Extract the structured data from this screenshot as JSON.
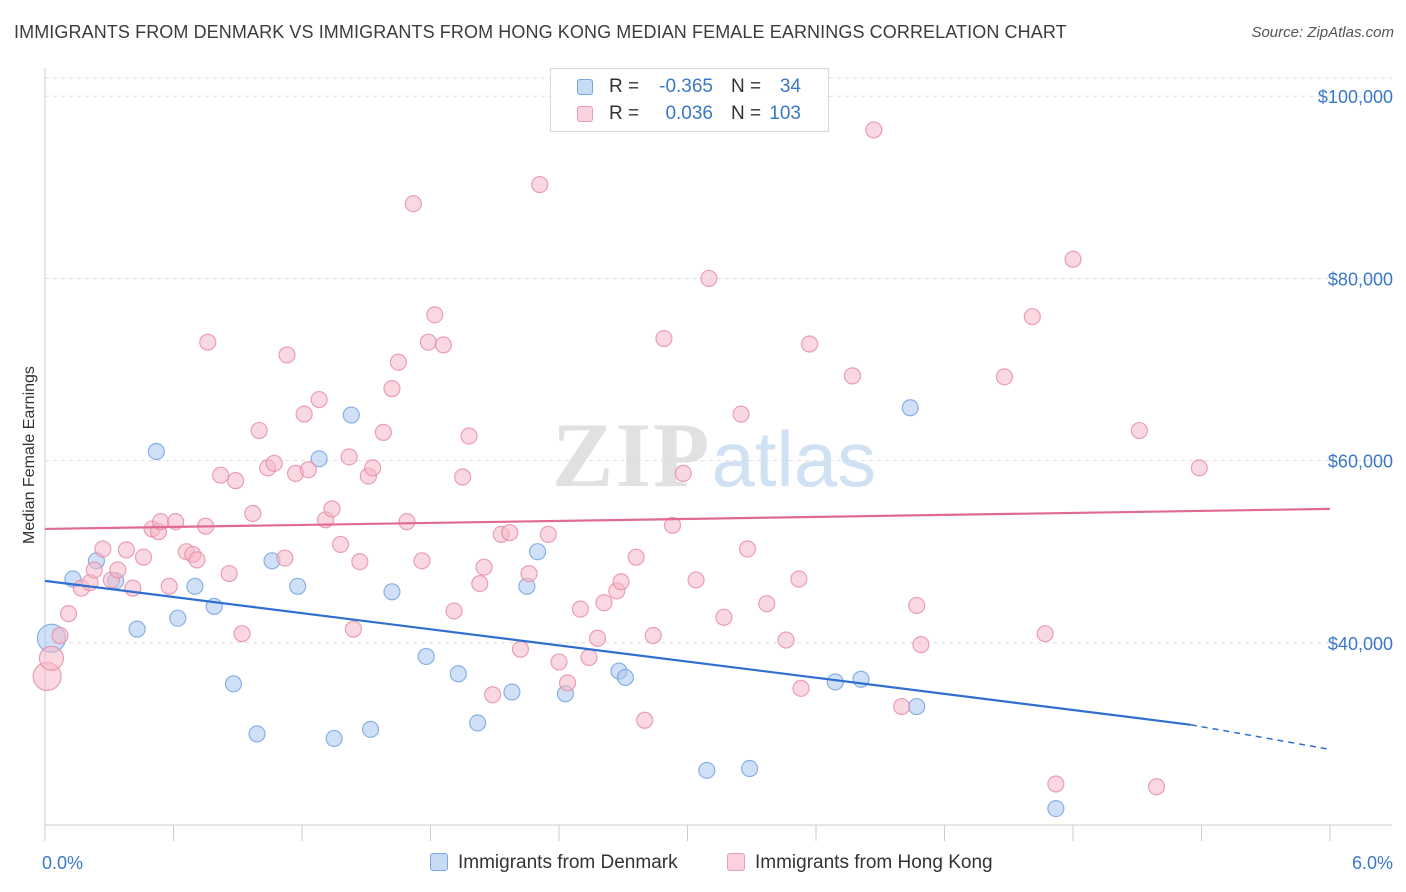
{
  "title": "IMMIGRANTS FROM DENMARK VS IMMIGRANTS FROM HONG KONG MEDIAN FEMALE EARNINGS CORRELATION CHART",
  "source": "Source: ZipAtlas.com",
  "watermark": {
    "zip": "ZIP",
    "atlas": "atlas"
  },
  "legend": {
    "denmark": {
      "r_label": "R =",
      "r_value": "-0.365",
      "n_label": "N =",
      "n_value": "34",
      "color": "#a9c7f0"
    },
    "hongkong": {
      "r_label": "R =",
      "r_value": "0.036",
      "n_label": "N =",
      "n_value": "103",
      "color": "#f5b8c9"
    }
  },
  "bottom_legend": {
    "denmark": "Immigrants from Denmark",
    "hongkong": "Immigrants from Hong Kong"
  },
  "chart_data": {
    "type": "scatter",
    "title": "IMMIGRANTS FROM DENMARK VS IMMIGRANTS FROM HONG KONG MEDIAN FEMALE EARNINGS CORRELATION CHART",
    "xlabel": "",
    "ylabel": "Median Female Earnings",
    "xlim": [
      0.0,
      6.0
    ],
    "ylim": [
      20000,
      102000
    ],
    "x_tick_labels": [
      "0.0%",
      "6.0%"
    ],
    "y_ticks": [
      40000,
      60000,
      80000,
      100000
    ],
    "y_tick_labels": [
      "$40,000",
      "$60,000",
      "$80,000",
      "$100,000"
    ],
    "grid": "horizontal dashed",
    "legend_position": "top-center",
    "series": [
      {
        "name": "Immigrants from Denmark",
        "color": "#6fa0e0",
        "fill": "#a9c7f0",
        "trend": {
          "x": [
            0.0,
            5.35
          ],
          "y": [
            46800,
            31000
          ],
          "dashed_to": [
            6.0,
            28300
          ]
        },
        "points": [
          [
            0.03,
            40500
          ],
          [
            0.13,
            47000
          ],
          [
            0.24,
            49000
          ],
          [
            0.33,
            46800
          ],
          [
            0.43,
            41500
          ],
          [
            0.52,
            61000
          ],
          [
            0.62,
            42700
          ],
          [
            0.7,
            46200
          ],
          [
            0.79,
            44000
          ],
          [
            0.88,
            35500
          ],
          [
            0.99,
            30000
          ],
          [
            1.06,
            49000
          ],
          [
            1.18,
            46200
          ],
          [
            1.28,
            60200
          ],
          [
            1.35,
            29500
          ],
          [
            1.43,
            65000
          ],
          [
            1.52,
            30500
          ],
          [
            1.62,
            45600
          ],
          [
            1.78,
            38500
          ],
          [
            1.93,
            36600
          ],
          [
            2.02,
            31200
          ],
          [
            2.18,
            34600
          ],
          [
            2.25,
            46200
          ],
          [
            2.3,
            50000
          ],
          [
            2.43,
            34400
          ],
          [
            2.68,
            36900
          ],
          [
            2.71,
            36200
          ],
          [
            3.09,
            26000
          ],
          [
            3.29,
            26200
          ],
          [
            3.69,
            35700
          ],
          [
            3.81,
            36000
          ],
          [
            4.04,
            65800
          ],
          [
            4.07,
            33000
          ],
          [
            4.72,
            21800
          ]
        ]
      },
      {
        "name": "Immigrants from Hong Kong",
        "color": "#e68aa5",
        "fill": "#f5b8c9",
        "trend": {
          "x": [
            0.0,
            6.0
          ],
          "y": [
            52500,
            54700
          ]
        },
        "points": [
          [
            0.01,
            36300
          ],
          [
            0.03,
            38300
          ],
          [
            0.07,
            40800
          ],
          [
            0.11,
            43200
          ],
          [
            0.17,
            46000
          ],
          [
            0.21,
            46600
          ],
          [
            0.23,
            48000
          ],
          [
            0.27,
            50300
          ],
          [
            0.31,
            46900
          ],
          [
            0.34,
            48000
          ],
          [
            0.38,
            50200
          ],
          [
            0.41,
            46000
          ],
          [
            0.46,
            49400
          ],
          [
            0.5,
            52500
          ],
          [
            0.53,
            52200
          ],
          [
            0.54,
            53300
          ],
          [
            0.58,
            46200
          ],
          [
            0.61,
            53300
          ],
          [
            0.66,
            50000
          ],
          [
            0.69,
            49700
          ],
          [
            0.71,
            49100
          ],
          [
            0.75,
            52800
          ],
          [
            0.76,
            73000
          ],
          [
            0.82,
            58400
          ],
          [
            0.86,
            47600
          ],
          [
            0.89,
            57800
          ],
          [
            0.92,
            41000
          ],
          [
            0.97,
            54200
          ],
          [
            1.0,
            63300
          ],
          [
            1.04,
            59200
          ],
          [
            1.07,
            59700
          ],
          [
            1.12,
            49300
          ],
          [
            1.13,
            71600
          ],
          [
            1.17,
            58600
          ],
          [
            1.21,
            65100
          ],
          [
            1.23,
            59000
          ],
          [
            1.28,
            66700
          ],
          [
            1.31,
            53500
          ],
          [
            1.34,
            54700
          ],
          [
            1.38,
            50800
          ],
          [
            1.42,
            60400
          ],
          [
            1.44,
            41500
          ],
          [
            1.47,
            48900
          ],
          [
            1.51,
            58300
          ],
          [
            1.53,
            59200
          ],
          [
            1.58,
            63100
          ],
          [
            1.62,
            67900
          ],
          [
            1.65,
            70800
          ],
          [
            1.69,
            53300
          ],
          [
            1.72,
            88200
          ],
          [
            1.76,
            49000
          ],
          [
            1.79,
            73000
          ],
          [
            1.82,
            76000
          ],
          [
            1.86,
            72700
          ],
          [
            1.91,
            43500
          ],
          [
            1.95,
            58200
          ],
          [
            1.98,
            62700
          ],
          [
            2.03,
            46500
          ],
          [
            2.05,
            48300
          ],
          [
            2.09,
            34300
          ],
          [
            2.13,
            51900
          ],
          [
            2.17,
            52100
          ],
          [
            2.22,
            39300
          ],
          [
            2.26,
            47600
          ],
          [
            2.31,
            90300
          ],
          [
            2.35,
            51900
          ],
          [
            2.4,
            37900
          ],
          [
            2.44,
            35600
          ],
          [
            2.5,
            43700
          ],
          [
            2.54,
            38400
          ],
          [
            2.58,
            40500
          ],
          [
            2.61,
            44400
          ],
          [
            2.67,
            45700
          ],
          [
            2.69,
            46700
          ],
          [
            2.76,
            49400
          ],
          [
            2.8,
            31500
          ],
          [
            2.84,
            40800
          ],
          [
            2.89,
            73400
          ],
          [
            2.93,
            52900
          ],
          [
            2.98,
            58600
          ],
          [
            3.04,
            46900
          ],
          [
            3.1,
            80000
          ],
          [
            3.17,
            42800
          ],
          [
            3.25,
            65100
          ],
          [
            3.28,
            50300
          ],
          [
            3.37,
            44300
          ],
          [
            3.46,
            40300
          ],
          [
            3.52,
            47000
          ],
          [
            3.53,
            35000
          ],
          [
            3.57,
            72800
          ],
          [
            3.77,
            69300
          ],
          [
            3.87,
            96300
          ],
          [
            4.0,
            33000
          ],
          [
            4.07,
            44100
          ],
          [
            4.09,
            39800
          ],
          [
            4.48,
            69200
          ],
          [
            4.61,
            75800
          ],
          [
            4.67,
            41000
          ],
          [
            4.72,
            24500
          ],
          [
            4.8,
            82100
          ],
          [
            5.11,
            63300
          ],
          [
            5.19,
            24200
          ],
          [
            5.39,
            59200
          ]
        ]
      }
    ]
  }
}
